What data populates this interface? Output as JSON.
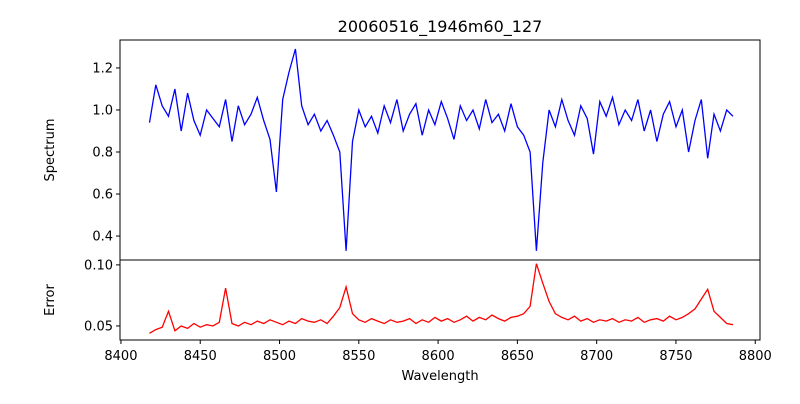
{
  "chart_data": [
    {
      "type": "line",
      "title": "20060516_1946m60_127",
      "xlabel": "",
      "ylabel": "Spectrum",
      "xlim": [
        8399.4,
        8803
      ],
      "ylim": [
        0.286,
        1.333
      ],
      "yticks": [
        0.4,
        0.6,
        0.8,
        1.0,
        1.2
      ],
      "ytick_labels": [
        "0.4",
        "0.6",
        "0.8",
        "1.0",
        "1.2"
      ],
      "color": "#0000ff",
      "x_start": 8418,
      "x_step": 4,
      "values": [
        0.94,
        1.12,
        1.02,
        0.97,
        1.1,
        0.9,
        1.08,
        0.95,
        0.88,
        1.0,
        0.96,
        0.92,
        1.05,
        0.85,
        1.02,
        0.93,
        0.98,
        1.06,
        0.95,
        0.86,
        0.61,
        1.05,
        1.18,
        1.29,
        1.02,
        0.93,
        0.98,
        0.9,
        0.95,
        0.88,
        0.8,
        0.33,
        0.85,
        1.0,
        0.92,
        0.97,
        0.89,
        1.02,
        0.94,
        1.05,
        0.9,
        0.98,
        1.03,
        0.88,
        1.0,
        0.93,
        1.04,
        0.96,
        0.86,
        1.02,
        0.95,
        1.0,
        0.91,
        1.05,
        0.94,
        0.98,
        0.9,
        1.03,
        0.92,
        0.88,
        0.8,
        0.33,
        0.75,
        1.0,
        0.92,
        1.05,
        0.95,
        0.88,
        1.02,
        0.96,
        0.79,
        1.04,
        0.97,
        1.06,
        0.93,
        1.0,
        0.95,
        1.05,
        0.9,
        1.0,
        0.85,
        0.98,
        1.04,
        0.92,
        1.0,
        0.8,
        0.95,
        1.05,
        0.77,
        0.98,
        0.9,
        1.0,
        0.97
      ]
    },
    {
      "type": "line",
      "xlabel": "Wavelength",
      "ylabel": "Error",
      "xlim": [
        8399.4,
        8803
      ],
      "ylim": [
        0.0385,
        0.104
      ],
      "xticks": [
        8400,
        8450,
        8500,
        8550,
        8600,
        8650,
        8700,
        8750,
        8800
      ],
      "xtick_labels": [
        "8400",
        "8450",
        "8500",
        "8550",
        "8600",
        "8650",
        "8700",
        "8750",
        "8800"
      ],
      "yticks": [
        0.05,
        0.1
      ],
      "ytick_labels": [
        "0.05",
        "0.10"
      ],
      "color": "#ff0000",
      "x_start": 8418,
      "x_step": 4,
      "values": [
        0.044,
        0.047,
        0.049,
        0.062,
        0.046,
        0.05,
        0.048,
        0.052,
        0.049,
        0.051,
        0.05,
        0.053,
        0.081,
        0.052,
        0.05,
        0.053,
        0.051,
        0.054,
        0.052,
        0.055,
        0.053,
        0.051,
        0.054,
        0.052,
        0.056,
        0.054,
        0.053,
        0.055,
        0.052,
        0.058,
        0.065,
        0.082,
        0.06,
        0.055,
        0.053,
        0.056,
        0.054,
        0.052,
        0.055,
        0.053,
        0.054,
        0.056,
        0.052,
        0.055,
        0.053,
        0.057,
        0.054,
        0.056,
        0.053,
        0.055,
        0.058,
        0.054,
        0.057,
        0.055,
        0.059,
        0.056,
        0.054,
        0.057,
        0.058,
        0.06,
        0.066,
        0.101,
        0.085,
        0.07,
        0.06,
        0.057,
        0.055,
        0.058,
        0.054,
        0.056,
        0.053,
        0.055,
        0.054,
        0.056,
        0.053,
        0.055,
        0.054,
        0.057,
        0.053,
        0.055,
        0.056,
        0.054,
        0.058,
        0.055,
        0.057,
        0.06,
        0.064,
        0.072,
        0.08,
        0.062,
        0.057,
        0.052,
        0.051
      ]
    }
  ]
}
